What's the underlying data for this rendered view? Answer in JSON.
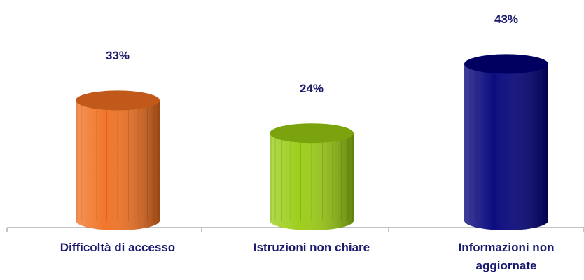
{
  "chart_data": {
    "type": "bar",
    "categories": [
      "Difficoltà di accesso",
      "Istruzioni non chiare",
      "Informazioni non aggiornate"
    ],
    "values": [
      33,
      24,
      43
    ],
    "value_labels": [
      "33%",
      "24%",
      "43%"
    ],
    "colors": [
      "#f07020",
      "#99cc11",
      "#00007a"
    ]
  }
}
